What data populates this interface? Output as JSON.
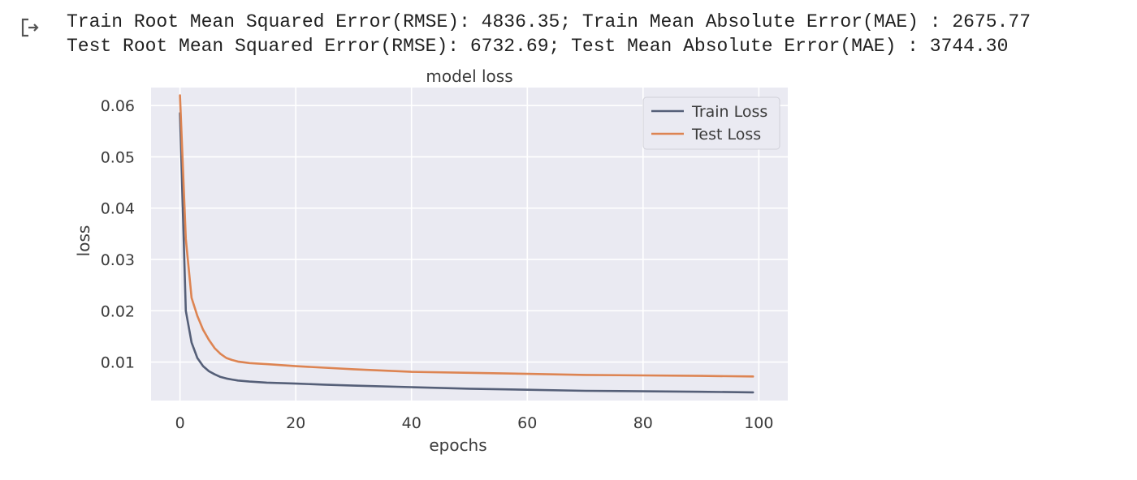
{
  "output": {
    "icon": "output-redirect-icon",
    "lines": [
      "Train Root Mean Squared Error(RMSE): 4836.35; Train Mean Absolute Error(MAE) : 2675.77",
      "Test Root Mean Squared Error(RMSE): 6732.69; Test Mean Absolute Error(MAE) : 3744.30"
    ]
  },
  "chart_data": {
    "type": "line",
    "title": "model loss",
    "xlabel": "epochs",
    "ylabel": "loss",
    "xlim": [
      -5,
      105
    ],
    "ylim": [
      0.0025,
      0.0635
    ],
    "xticks": [
      0,
      20,
      40,
      60,
      80,
      100
    ],
    "yticks": [
      0.01,
      0.02,
      0.03,
      0.04,
      0.05,
      0.06
    ],
    "ytick_labels": [
      "0.01",
      "0.02",
      "0.03",
      "0.04",
      "0.05",
      "0.06"
    ],
    "grid": true,
    "legend_position": "top-right",
    "colors": {
      "background": "#eaeaf2",
      "grid": "#ffffff",
      "train": "#4c566a",
      "test": "#dd8452",
      "text": "#3b3b3b"
    },
    "series": [
      {
        "name": "Train Loss",
        "color": "#555f78",
        "points": [
          [
            0,
            0.0585
          ],
          [
            1,
            0.02
          ],
          [
            2,
            0.0138
          ],
          [
            3,
            0.0108
          ],
          [
            4,
            0.0092
          ],
          [
            5,
            0.0082
          ],
          [
            6,
            0.0076
          ],
          [
            7,
            0.0071
          ],
          [
            8,
            0.0068
          ],
          [
            9,
            0.0066
          ],
          [
            10,
            0.0064
          ],
          [
            12,
            0.0062
          ],
          [
            15,
            0.006
          ],
          [
            20,
            0.0058
          ],
          [
            25,
            0.0056
          ],
          [
            30,
            0.0054
          ],
          [
            40,
            0.0051
          ],
          [
            50,
            0.0048
          ],
          [
            60,
            0.0046
          ],
          [
            70,
            0.0044
          ],
          [
            80,
            0.0043
          ],
          [
            90,
            0.0042
          ],
          [
            99,
            0.0041
          ]
        ]
      },
      {
        "name": "Test Loss",
        "color": "#dd8452",
        "points": [
          [
            0,
            0.062
          ],
          [
            1,
            0.034
          ],
          [
            2,
            0.0225
          ],
          [
            3,
            0.019
          ],
          [
            4,
            0.0163
          ],
          [
            5,
            0.0143
          ],
          [
            6,
            0.0127
          ],
          [
            7,
            0.0116
          ],
          [
            8,
            0.0108
          ],
          [
            9,
            0.0104
          ],
          [
            10,
            0.0101
          ],
          [
            12,
            0.0098
          ],
          [
            15,
            0.0096
          ],
          [
            20,
            0.0092
          ],
          [
            25,
            0.0089
          ],
          [
            30,
            0.0086
          ],
          [
            40,
            0.0081
          ],
          [
            50,
            0.0079
          ],
          [
            60,
            0.0077
          ],
          [
            70,
            0.0075
          ],
          [
            80,
            0.0074
          ],
          [
            90,
            0.0073
          ],
          [
            99,
            0.0072
          ]
        ]
      }
    ]
  }
}
